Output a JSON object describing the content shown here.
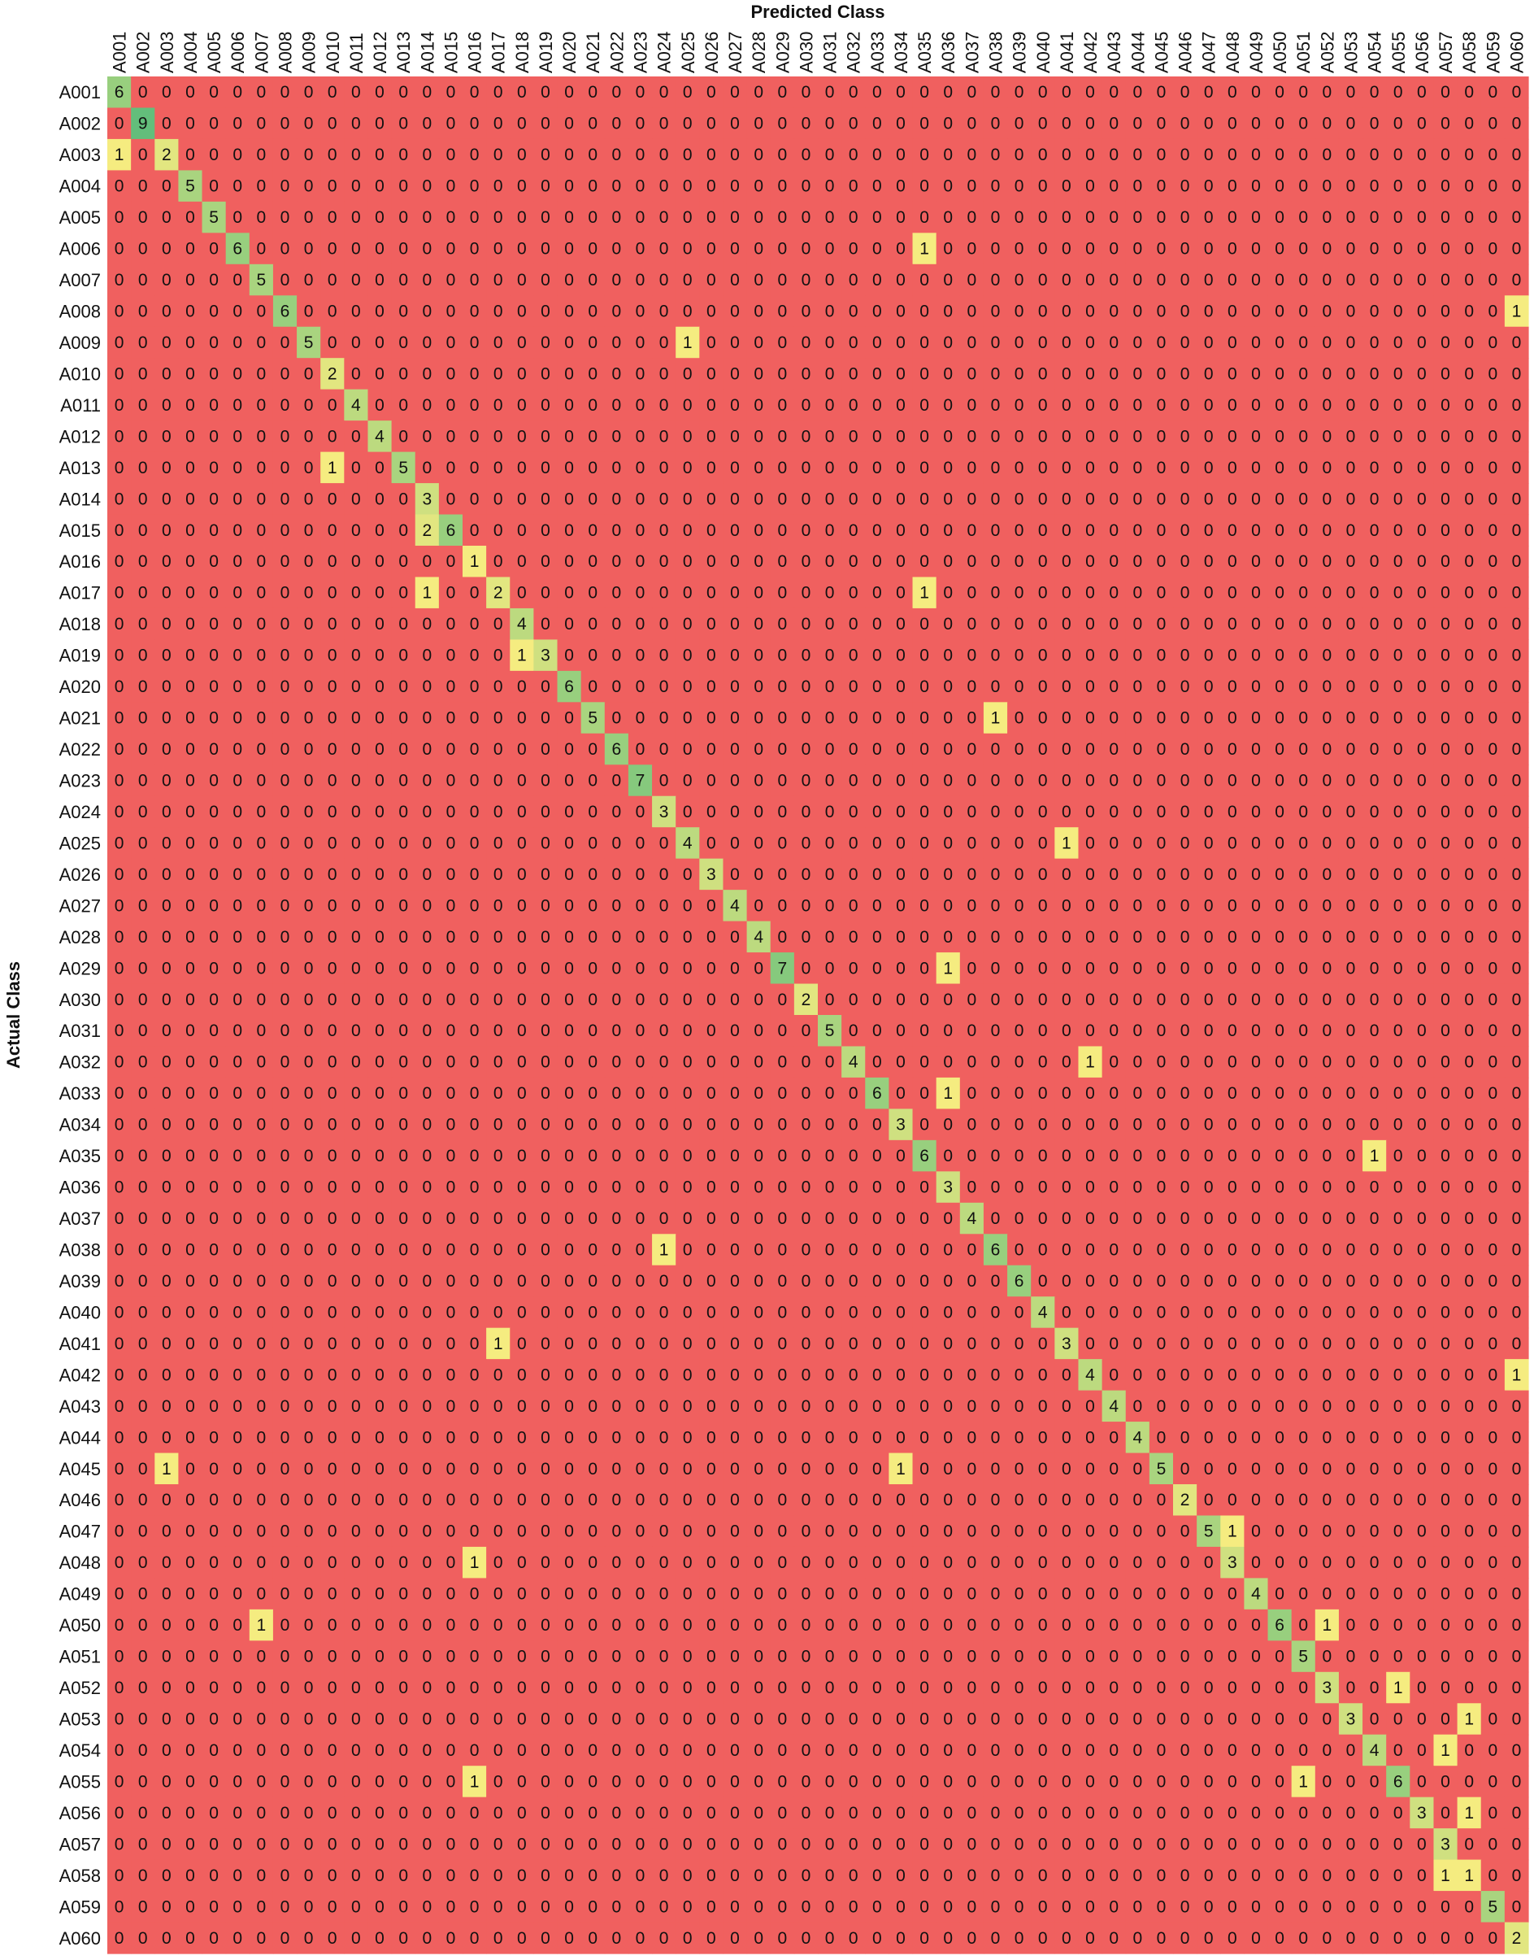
{
  "chart_data": {
    "type": "heatmap",
    "xlabel": "Predicted Class",
    "ylabel": "Actual Class",
    "x_categories": [
      "A001",
      "A002",
      "A003",
      "A004",
      "A005",
      "A006",
      "A007",
      "A008",
      "A009",
      "A010",
      "A011",
      "A012",
      "A013",
      "A014",
      "A015",
      "A016",
      "A017",
      "A018",
      "A019",
      "A020",
      "A021",
      "A022",
      "A023",
      "A024",
      "A025",
      "A026",
      "A027",
      "A028",
      "A029",
      "A030",
      "A031",
      "A032",
      "A033",
      "A034",
      "A035",
      "A036",
      "A037",
      "A038",
      "A039",
      "A040",
      "A041",
      "A042",
      "A043",
      "A044",
      "A045",
      "A046",
      "A047",
      "A048",
      "A049",
      "A050",
      "A051",
      "A052",
      "A053",
      "A054",
      "A055",
      "A056",
      "A057",
      "A058",
      "A059",
      "A060"
    ],
    "y_categories": [
      "A001",
      "A002",
      "A003",
      "A004",
      "A005",
      "A006",
      "A007",
      "A008",
      "A009",
      "A010",
      "A011",
      "A012",
      "A013",
      "A014",
      "A015",
      "A016",
      "A017",
      "A018",
      "A019",
      "A020",
      "A021",
      "A022",
      "A023",
      "A024",
      "A025",
      "A026",
      "A027",
      "A028",
      "A029",
      "A030",
      "A031",
      "A032",
      "A033",
      "A034",
      "A035",
      "A036",
      "A037",
      "A038",
      "A039",
      "A040",
      "A041",
      "A042",
      "A043",
      "A044",
      "A045",
      "A046",
      "A047",
      "A048",
      "A049",
      "A050",
      "A051",
      "A052",
      "A053",
      "A054",
      "A055",
      "A056",
      "A057",
      "A058",
      "A059",
      "A060"
    ],
    "default_value": 0,
    "cells": [
      {
        "row": "A001",
        "col": "A001",
        "value": 6
      },
      {
        "row": "A002",
        "col": "A002",
        "value": 9
      },
      {
        "row": "A003",
        "col": "A001",
        "value": 1
      },
      {
        "row": "A003",
        "col": "A003",
        "value": 2
      },
      {
        "row": "A004",
        "col": "A004",
        "value": 5
      },
      {
        "row": "A005",
        "col": "A005",
        "value": 5
      },
      {
        "row": "A006",
        "col": "A006",
        "value": 6
      },
      {
        "row": "A006",
        "col": "A035",
        "value": 1
      },
      {
        "row": "A007",
        "col": "A007",
        "value": 5
      },
      {
        "row": "A008",
        "col": "A008",
        "value": 6
      },
      {
        "row": "A008",
        "col": "A060",
        "value": 1
      },
      {
        "row": "A009",
        "col": "A009",
        "value": 5
      },
      {
        "row": "A009",
        "col": "A025",
        "value": 1
      },
      {
        "row": "A010",
        "col": "A010",
        "value": 2
      },
      {
        "row": "A011",
        "col": "A011",
        "value": 4
      },
      {
        "row": "A012",
        "col": "A012",
        "value": 4
      },
      {
        "row": "A013",
        "col": "A010",
        "value": 1
      },
      {
        "row": "A013",
        "col": "A013",
        "value": 5
      },
      {
        "row": "A014",
        "col": "A014",
        "value": 3
      },
      {
        "row": "A015",
        "col": "A014",
        "value": 2
      },
      {
        "row": "A015",
        "col": "A015",
        "value": 6
      },
      {
        "row": "A016",
        "col": "A016",
        "value": 1
      },
      {
        "row": "A017",
        "col": "A014",
        "value": 1
      },
      {
        "row": "A017",
        "col": "A017",
        "value": 2
      },
      {
        "row": "A017",
        "col": "A035",
        "value": 1
      },
      {
        "row": "A018",
        "col": "A018",
        "value": 4
      },
      {
        "row": "A019",
        "col": "A018",
        "value": 1
      },
      {
        "row": "A019",
        "col": "A019",
        "value": 3
      },
      {
        "row": "A020",
        "col": "A020",
        "value": 6
      },
      {
        "row": "A021",
        "col": "A021",
        "value": 5
      },
      {
        "row": "A021",
        "col": "A038",
        "value": 1
      },
      {
        "row": "A022",
        "col": "A022",
        "value": 6
      },
      {
        "row": "A023",
        "col": "A023",
        "value": 7
      },
      {
        "row": "A024",
        "col": "A024",
        "value": 3
      },
      {
        "row": "A025",
        "col": "A025",
        "value": 4
      },
      {
        "row": "A025",
        "col": "A041",
        "value": 1
      },
      {
        "row": "A026",
        "col": "A026",
        "value": 3
      },
      {
        "row": "A027",
        "col": "A027",
        "value": 4
      },
      {
        "row": "A028",
        "col": "A028",
        "value": 4
      },
      {
        "row": "A029",
        "col": "A029",
        "value": 7
      },
      {
        "row": "A029",
        "col": "A036",
        "value": 1
      },
      {
        "row": "A030",
        "col": "A030",
        "value": 2
      },
      {
        "row": "A031",
        "col": "A031",
        "value": 5
      },
      {
        "row": "A032",
        "col": "A032",
        "value": 4
      },
      {
        "row": "A032",
        "col": "A042",
        "value": 1
      },
      {
        "row": "A033",
        "col": "A033",
        "value": 6
      },
      {
        "row": "A033",
        "col": "A036",
        "value": 1
      },
      {
        "row": "A034",
        "col": "A034",
        "value": 3
      },
      {
        "row": "A035",
        "col": "A035",
        "value": 6
      },
      {
        "row": "A035",
        "col": "A054",
        "value": 1
      },
      {
        "row": "A036",
        "col": "A036",
        "value": 3
      },
      {
        "row": "A037",
        "col": "A037",
        "value": 4
      },
      {
        "row": "A038",
        "col": "A024",
        "value": 1
      },
      {
        "row": "A038",
        "col": "A038",
        "value": 6
      },
      {
        "row": "A039",
        "col": "A039",
        "value": 6
      },
      {
        "row": "A040",
        "col": "A040",
        "value": 4
      },
      {
        "row": "A041",
        "col": "A017",
        "value": 1
      },
      {
        "row": "A041",
        "col": "A041",
        "value": 3
      },
      {
        "row": "A042",
        "col": "A042",
        "value": 4
      },
      {
        "row": "A042",
        "col": "A060",
        "value": 1
      },
      {
        "row": "A043",
        "col": "A043",
        "value": 4
      },
      {
        "row": "A044",
        "col": "A044",
        "value": 4
      },
      {
        "row": "A045",
        "col": "A003",
        "value": 1
      },
      {
        "row": "A045",
        "col": "A034",
        "value": 1
      },
      {
        "row": "A045",
        "col": "A045",
        "value": 5
      },
      {
        "row": "A046",
        "col": "A046",
        "value": 2
      },
      {
        "row": "A047",
        "col": "A047",
        "value": 5
      },
      {
        "row": "A047",
        "col": "A048",
        "value": 1
      },
      {
        "row": "A048",
        "col": "A016",
        "value": 1
      },
      {
        "row": "A048",
        "col": "A048",
        "value": 3
      },
      {
        "row": "A049",
        "col": "A049",
        "value": 4
      },
      {
        "row": "A050",
        "col": "A007",
        "value": 1
      },
      {
        "row": "A050",
        "col": "A050",
        "value": 6
      },
      {
        "row": "A050",
        "col": "A052",
        "value": 1
      },
      {
        "row": "A051",
        "col": "A051",
        "value": 5
      },
      {
        "row": "A052",
        "col": "A052",
        "value": 3
      },
      {
        "row": "A052",
        "col": "A055",
        "value": 1
      },
      {
        "row": "A053",
        "col": "A053",
        "value": 3
      },
      {
        "row": "A053",
        "col": "A058",
        "value": 1
      },
      {
        "row": "A054",
        "col": "A054",
        "value": 4
      },
      {
        "row": "A054",
        "col": "A057",
        "value": 1
      },
      {
        "row": "A055",
        "col": "A016",
        "value": 1
      },
      {
        "row": "A055",
        "col": "A051",
        "value": 1
      },
      {
        "row": "A055",
        "col": "A055",
        "value": 6
      },
      {
        "row": "A056",
        "col": "A056",
        "value": 3
      },
      {
        "row": "A056",
        "col": "A058",
        "value": 1
      },
      {
        "row": "A057",
        "col": "A057",
        "value": 3
      },
      {
        "row": "A058",
        "col": "A057",
        "value": 1
      },
      {
        "row": "A058",
        "col": "A058",
        "value": 1
      },
      {
        "row": "A059",
        "col": "A059",
        "value": 5
      },
      {
        "row": "A060",
        "col": "A060",
        "value": 2
      }
    ],
    "colors": {
      "zero": "#f0605f",
      "low": "#f5ec80",
      "mid": "#a9d47f",
      "high": "#63be7b"
    },
    "grid": false,
    "legend": "none"
  }
}
